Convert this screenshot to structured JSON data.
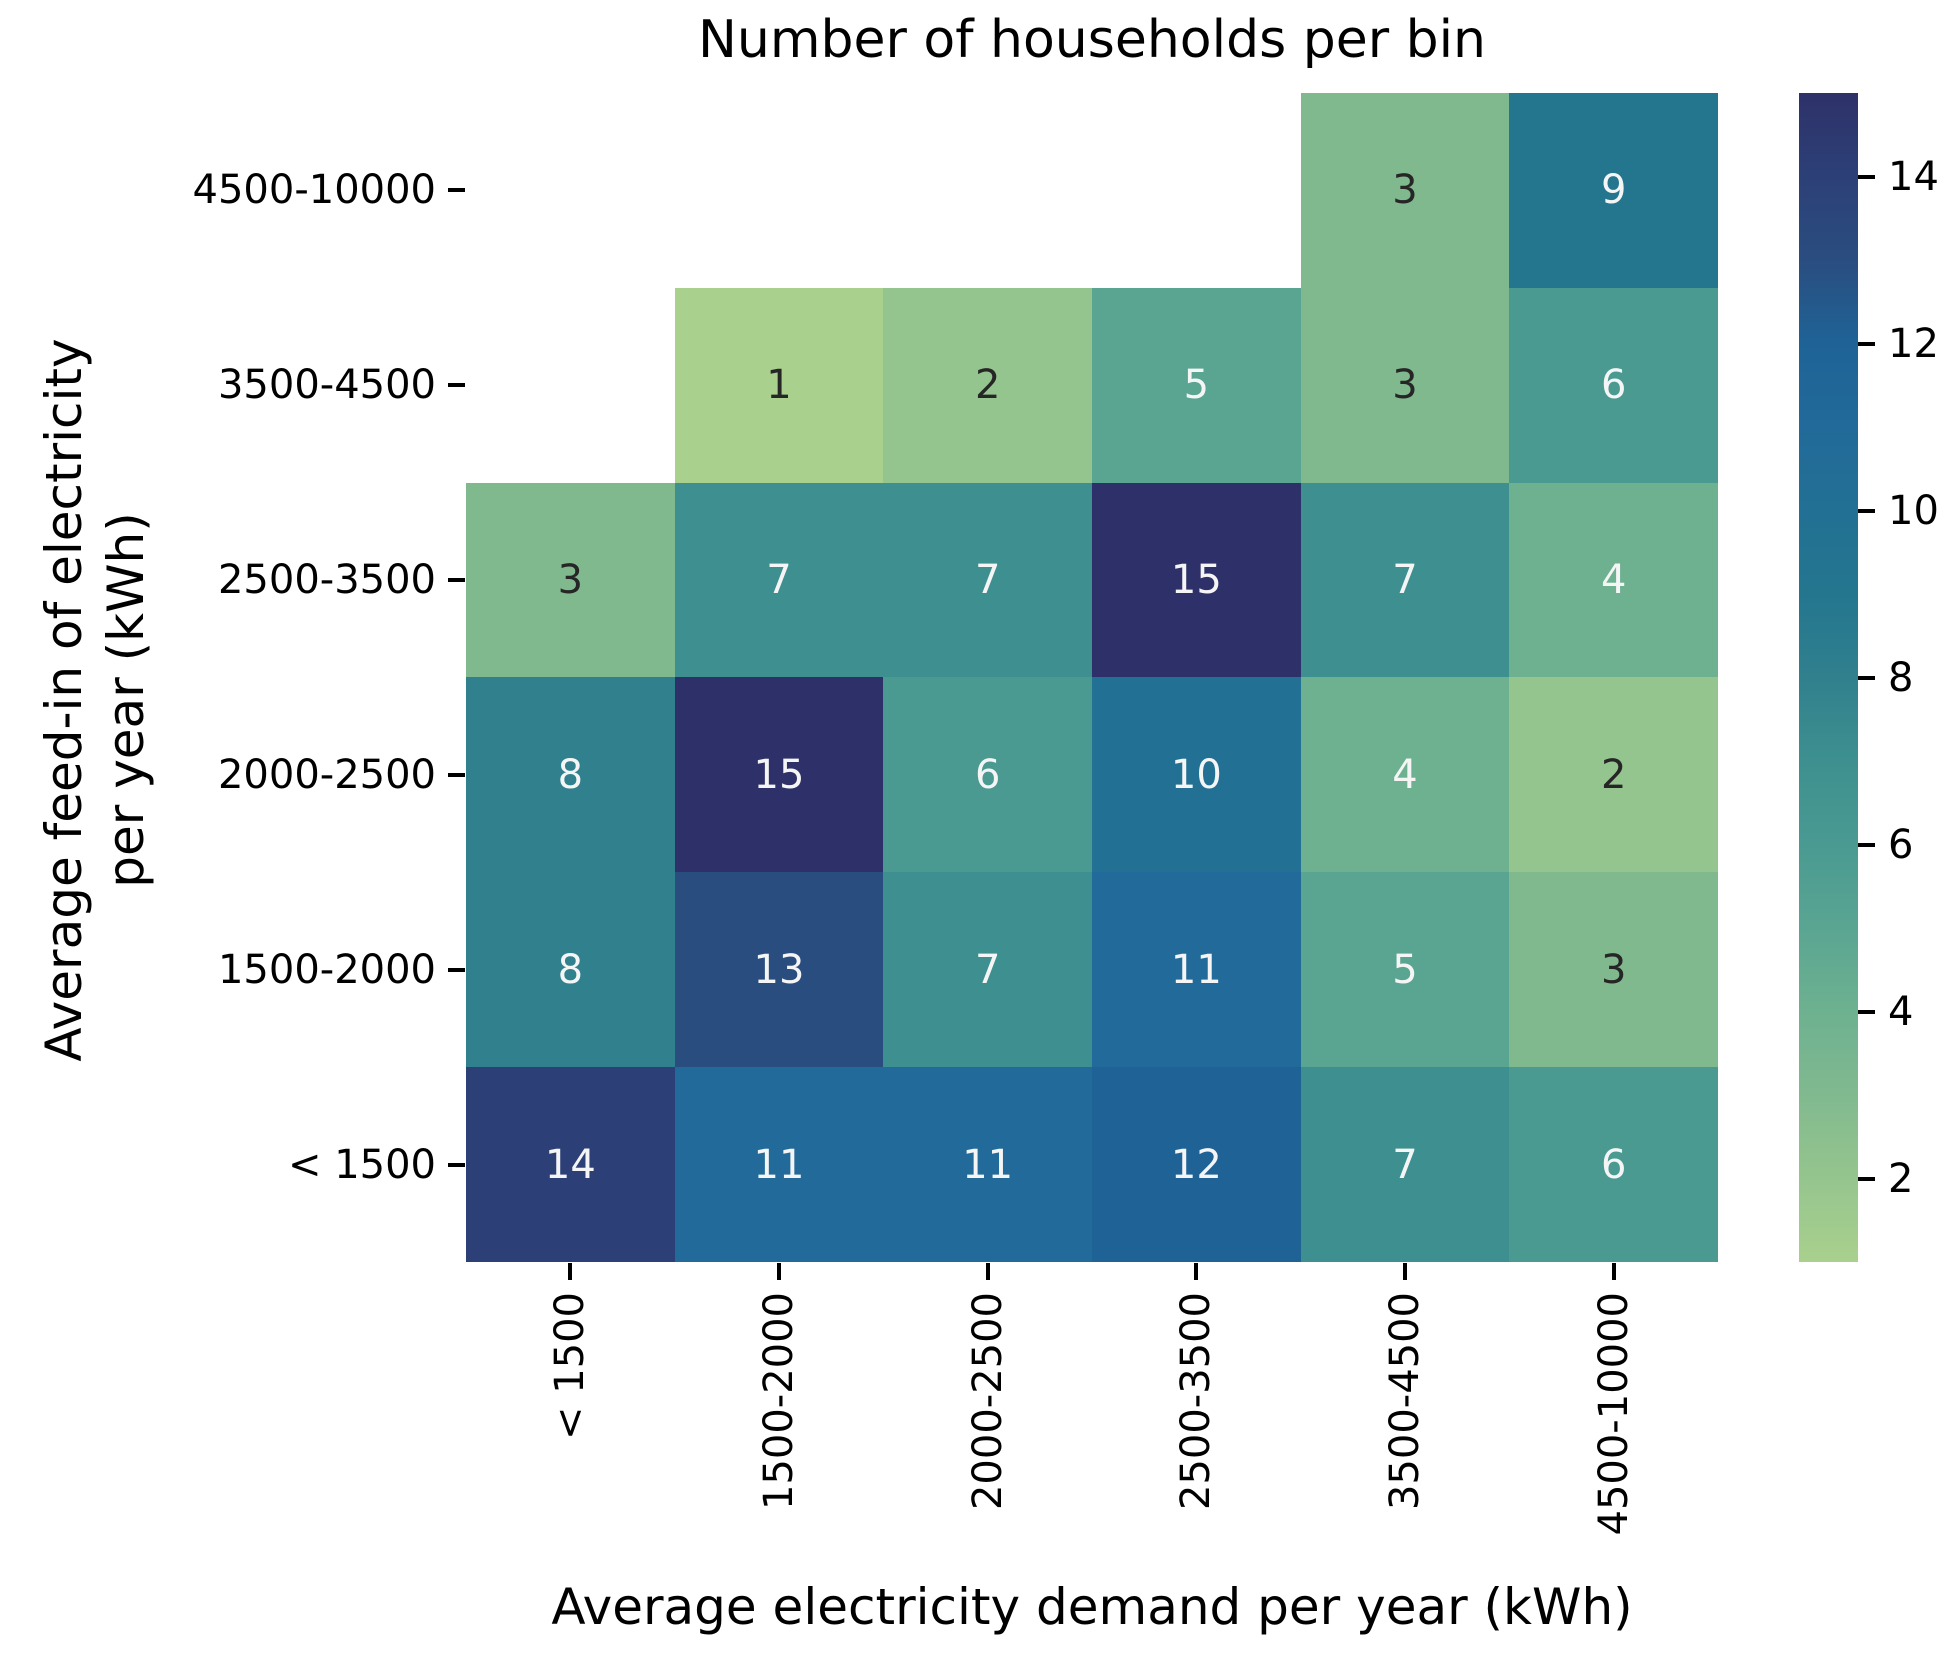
{
  "chart_data": {
    "type": "heatmap",
    "title": "Number of households per bin",
    "xlabel": "Average electricity demand per year (kWh)",
    "ylabel_line1": "Average feed-in of electricity",
    "ylabel_line2": "per year (kWh)",
    "x_categories": [
      "< 1500",
      "1500-2000",
      "2000-2500",
      "2500-3500",
      "3500-4500",
      "4500-10000"
    ],
    "y_categories": [
      "4500-10000",
      "3500-4500",
      "2500-3500",
      "2000-2500",
      "1500-2000",
      "< 1500"
    ],
    "values": [
      [
        null,
        null,
        null,
        null,
        3,
        9
      ],
      [
        null,
        1,
        2,
        5,
        3,
        6
      ],
      [
        3,
        7,
        7,
        15,
        7,
        4
      ],
      [
        8,
        15,
        6,
        10,
        4,
        2
      ],
      [
        8,
        13,
        7,
        11,
        5,
        3
      ],
      [
        14,
        11,
        11,
        12,
        7,
        6
      ]
    ],
    "vmin": 1,
    "vmax": 15,
    "colorbar_ticks": [
      2,
      4,
      6,
      8,
      10,
      12,
      14
    ],
    "colorbar_position": "right",
    "grid": false,
    "colormap_name": "crest",
    "colormap_stops": {
      "1": "#a9d08d",
      "2": "#95c58e",
      "3": "#81b98f",
      "4": "#6db190",
      "5": "#5aa592",
      "6": "#4a9a92",
      "7": "#3d908f",
      "8": "#30808e",
      "9": "#24768f",
      "10": "#227094",
      "11": "#216a99",
      "12": "#1f6396",
      "13": "#2a4d80",
      "14": "#2c4077",
      "15": "#2e3169"
    },
    "annotation_dark_color": "#262626",
    "annotation_light_color": "#f5f5f5",
    "annotation_light_threshold": 4
  }
}
